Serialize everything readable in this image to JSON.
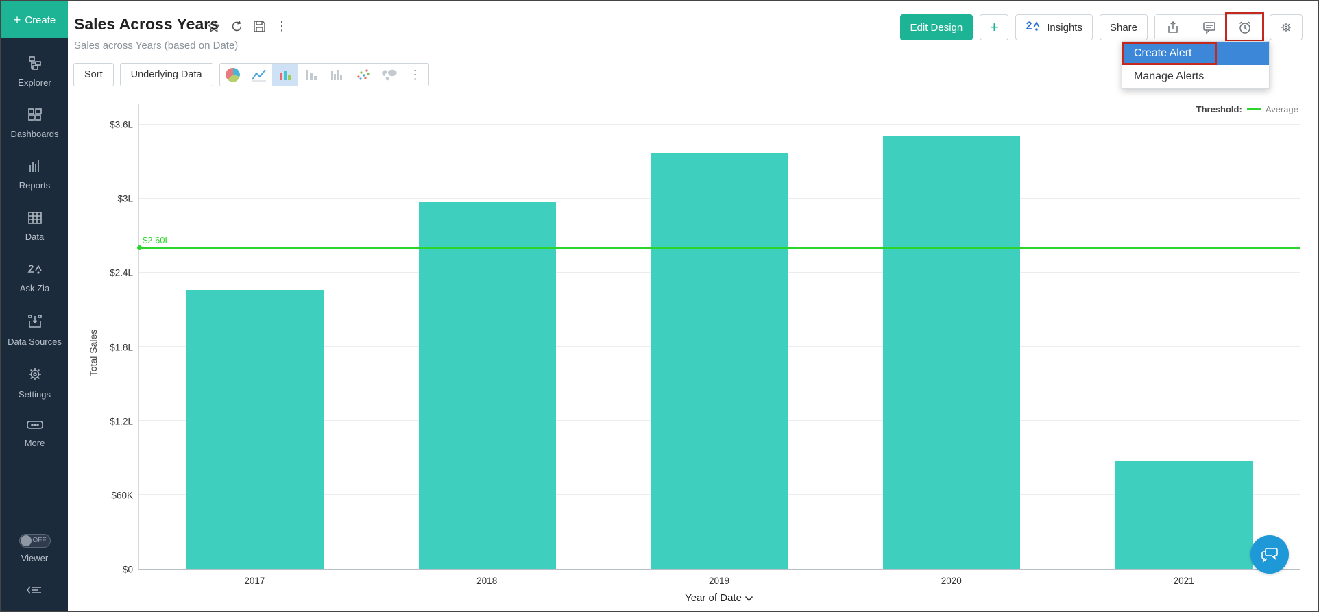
{
  "sidebar": {
    "create_label": "Create",
    "items": [
      {
        "label": "Explorer"
      },
      {
        "label": "Dashboards"
      },
      {
        "label": "Reports"
      },
      {
        "label": "Data"
      },
      {
        "label": "Ask Zia"
      },
      {
        "label": "Data Sources"
      },
      {
        "label": "Settings"
      },
      {
        "label": "More"
      }
    ],
    "viewer_toggle": "OFF",
    "viewer_label": "Viewer"
  },
  "header": {
    "title": "Sales Across Years",
    "subtitle": "Sales across Years (based on Date)",
    "edit_design_label": "Edit Design",
    "add_label": "+",
    "insights_label": "Insights",
    "share_label": "Share"
  },
  "toolbar": {
    "sort_label": "Sort",
    "underlying_data_label": "Underlying Data"
  },
  "alert_menu": {
    "create_label": "Create Alert",
    "manage_label": "Manage Alerts"
  },
  "chart_data": {
    "type": "bar",
    "categories": [
      "2017",
      "2018",
      "2019",
      "2020",
      "2021"
    ],
    "values": [
      226000,
      297000,
      337000,
      351000,
      87000
    ],
    "value_display": [
      "$2.26L",
      "$2.97L",
      "$3.37L",
      "$3.51L",
      "$87K"
    ],
    "title": "",
    "xlabel": "Year of Date",
    "ylabel": "Total Sales",
    "ylim": [
      0,
      360000
    ],
    "ytick_labels": [
      "$0",
      "$60K",
      "$1.2L",
      "$1.8L",
      "$2.4L",
      "$3L",
      "$3.6L"
    ],
    "grid": true,
    "legend_position": "top-right",
    "threshold": {
      "value": 260000,
      "label": "$2.60L",
      "legend_title": "Threshold:",
      "legend_label": "Average"
    },
    "bar_color": "#3ecfbf",
    "threshold_color": "#2bd52b"
  },
  "colors": {
    "accent_green": "#1cb494",
    "selection_blue": "#3d87d8",
    "annotation_red": "#c5281c",
    "sidebar_bg": "#1c2b3b",
    "chat_blue": "#1e98d7"
  }
}
